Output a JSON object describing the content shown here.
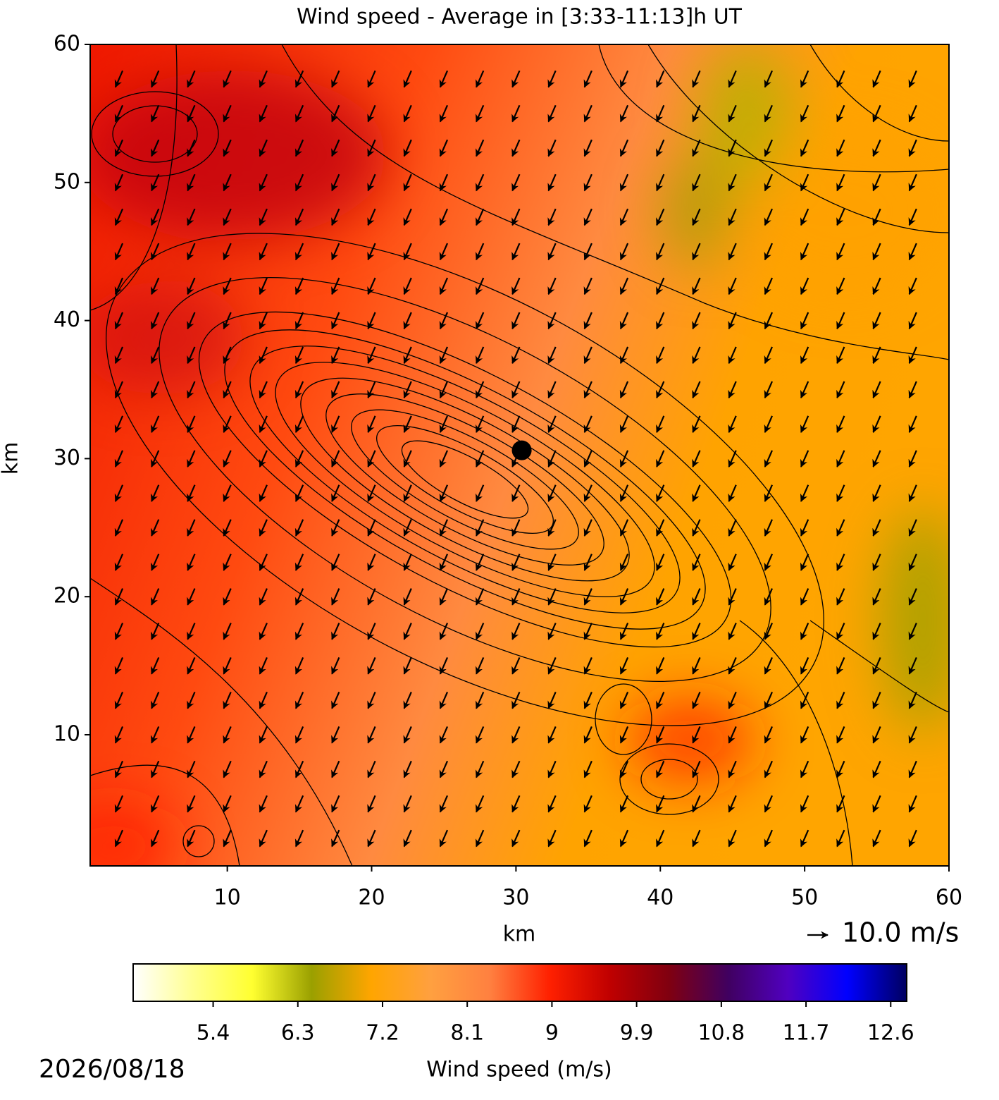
{
  "chart_data": {
    "type": "wind-field",
    "title": "Wind speed - Average in [3:33-11:13]h UT",
    "x_label": "km",
    "y_label": "km",
    "xlim": [
      0.5,
      60
    ],
    "ylim": [
      0.5,
      60
    ],
    "xticks": [
      10,
      20,
      30,
      40,
      50,
      60
    ],
    "yticks": [
      10,
      20,
      30,
      40,
      50,
      60
    ],
    "wind": {
      "x": [
        2.5,
        5,
        7.5,
        10,
        12.5,
        15,
        17.5,
        20,
        22.5,
        25,
        27.5,
        30,
        32.5,
        35,
        37.5,
        40,
        42.5,
        45,
        47.5,
        50,
        52.5,
        55,
        57.5
      ],
      "y": [
        2.5,
        5,
        7.5,
        10,
        12.5,
        15,
        17.5,
        20,
        22.5,
        25,
        27.5,
        30,
        32.5,
        35,
        37.5,
        40,
        42.5,
        45,
        47.5,
        50,
        52.5,
        55,
        57.5
      ],
      "u": -3.5,
      "v": -8,
      "color": "#000000"
    },
    "quiver_key": {
      "value": 10,
      "label": "10.0 m/s"
    },
    "marker": {
      "x": 30.4,
      "y": 30.6,
      "color": "#000000"
    },
    "colorbar": {
      "label": "Wind speed (m/s)",
      "lim": [
        4.55,
        12.77
      ],
      "ticks": [
        5.4,
        6.3,
        7.2,
        8.1,
        9.0,
        9.9,
        10.8,
        11.7,
        12.6
      ],
      "colors": [
        "#ffffff",
        "#ffff90",
        "#ffff30",
        "#9aa000",
        "#ffa500",
        "#ffa040",
        "#ff8040",
        "#ff2000",
        "#c00000",
        "#800010",
        "#400060",
        "#5000c0",
        "#0000ff",
        "#000060"
      ]
    },
    "date": "2026/08/18"
  }
}
